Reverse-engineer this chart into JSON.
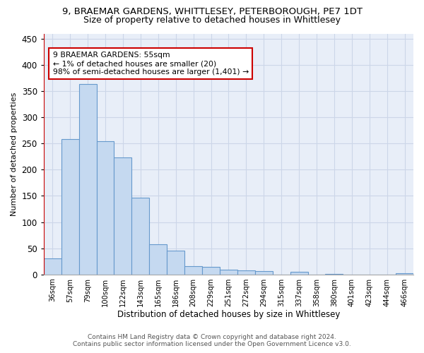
{
  "title_line1": "9, BRAEMAR GARDENS, WHITTLESEY, PETERBOROUGH, PE7 1DT",
  "title_line2": "Size of property relative to detached houses in Whittlesey",
  "xlabel": "Distribution of detached houses by size in Whittlesey",
  "ylabel": "Number of detached properties",
  "bar_labels": [
    "36sqm",
    "57sqm",
    "79sqm",
    "100sqm",
    "122sqm",
    "143sqm",
    "165sqm",
    "186sqm",
    "208sqm",
    "229sqm",
    "251sqm",
    "272sqm",
    "294sqm",
    "315sqm",
    "337sqm",
    "358sqm",
    "380sqm",
    "401sqm",
    "423sqm",
    "444sqm",
    "466sqm"
  ],
  "bar_values": [
    30,
    258,
    363,
    255,
    224,
    147,
    57,
    45,
    16,
    15,
    9,
    8,
    7,
    0,
    5,
    0,
    1,
    0,
    0,
    0,
    2
  ],
  "bar_color": "#c5d9f0",
  "bar_edge_color": "#6699cc",
  "vline_x": -0.5,
  "vline_color": "#cc0000",
  "annotation_text": "9 BRAEMAR GARDENS: 55sqm\n← 1% of detached houses are smaller (20)\n98% of semi-detached houses are larger (1,401) →",
  "annotation_box_color": "#ffffff",
  "annotation_box_edgecolor": "#cc0000",
  "ylim": [
    0,
    460
  ],
  "yticks": [
    0,
    50,
    100,
    150,
    200,
    250,
    300,
    350,
    400,
    450
  ],
  "footer_line1": "Contains HM Land Registry data © Crown copyright and database right 2024.",
  "footer_line2": "Contains public sector information licensed under the Open Government Licence v3.0.",
  "background_color": "#ffffff",
  "grid_color": "#ccd6e8"
}
